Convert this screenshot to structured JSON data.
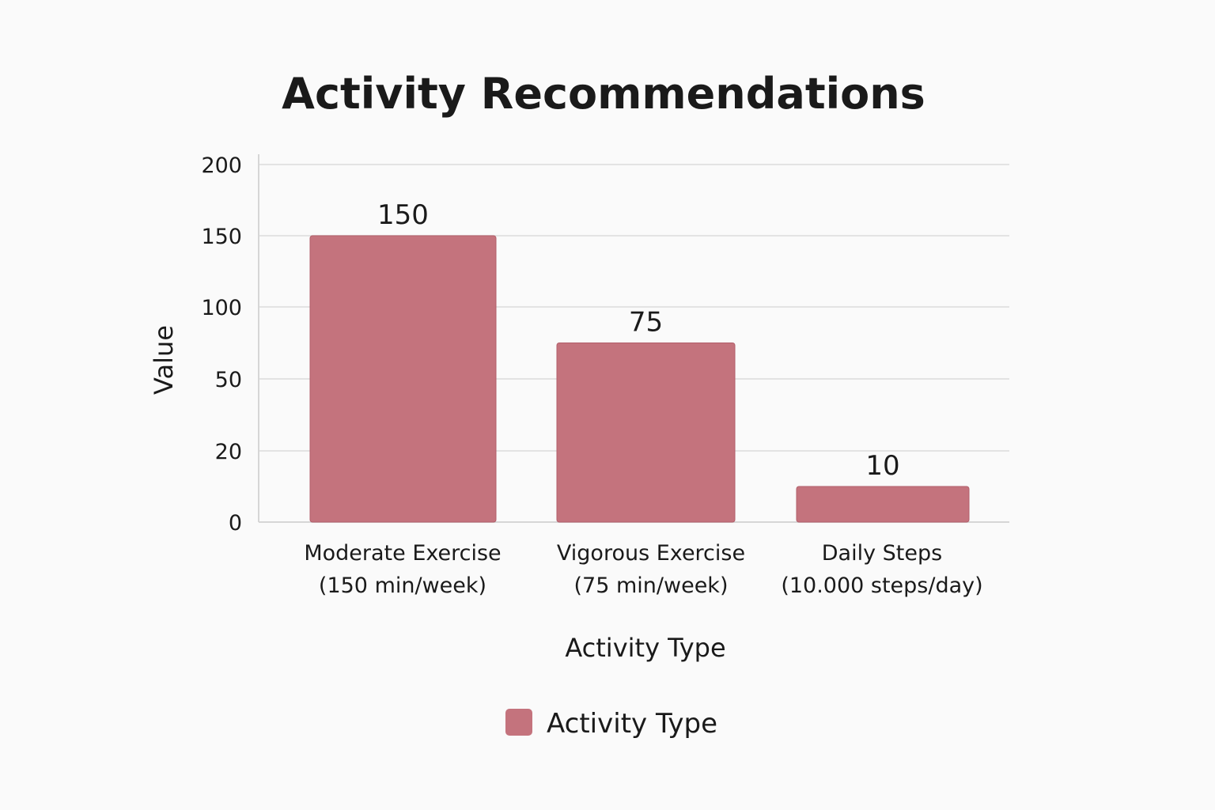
{
  "chart_data": {
    "type": "bar",
    "title": "Activity Recommendations",
    "xlabel": "Activity Type",
    "ylabel": "Value",
    "y_ticks": [
      "0",
      "20",
      "50",
      "100",
      "150",
      "200"
    ],
    "categories": [
      [
        "Moderate Exercise",
        "(150 min/week)"
      ],
      [
        "Vigorous Exercise",
        "(75 min/week)"
      ],
      [
        "Daily Steps",
        "(10.000 steps/day)"
      ]
    ],
    "series": [
      {
        "name": "Activity Type",
        "values": [
          150,
          75,
          10
        ],
        "data_labels": [
          "150",
          "75",
          "10"
        ],
        "color": "#c4737d"
      }
    ],
    "legend": {
      "placement": "bottom-center",
      "entries": [
        "Activity Type"
      ]
    },
    "grid": true
  }
}
